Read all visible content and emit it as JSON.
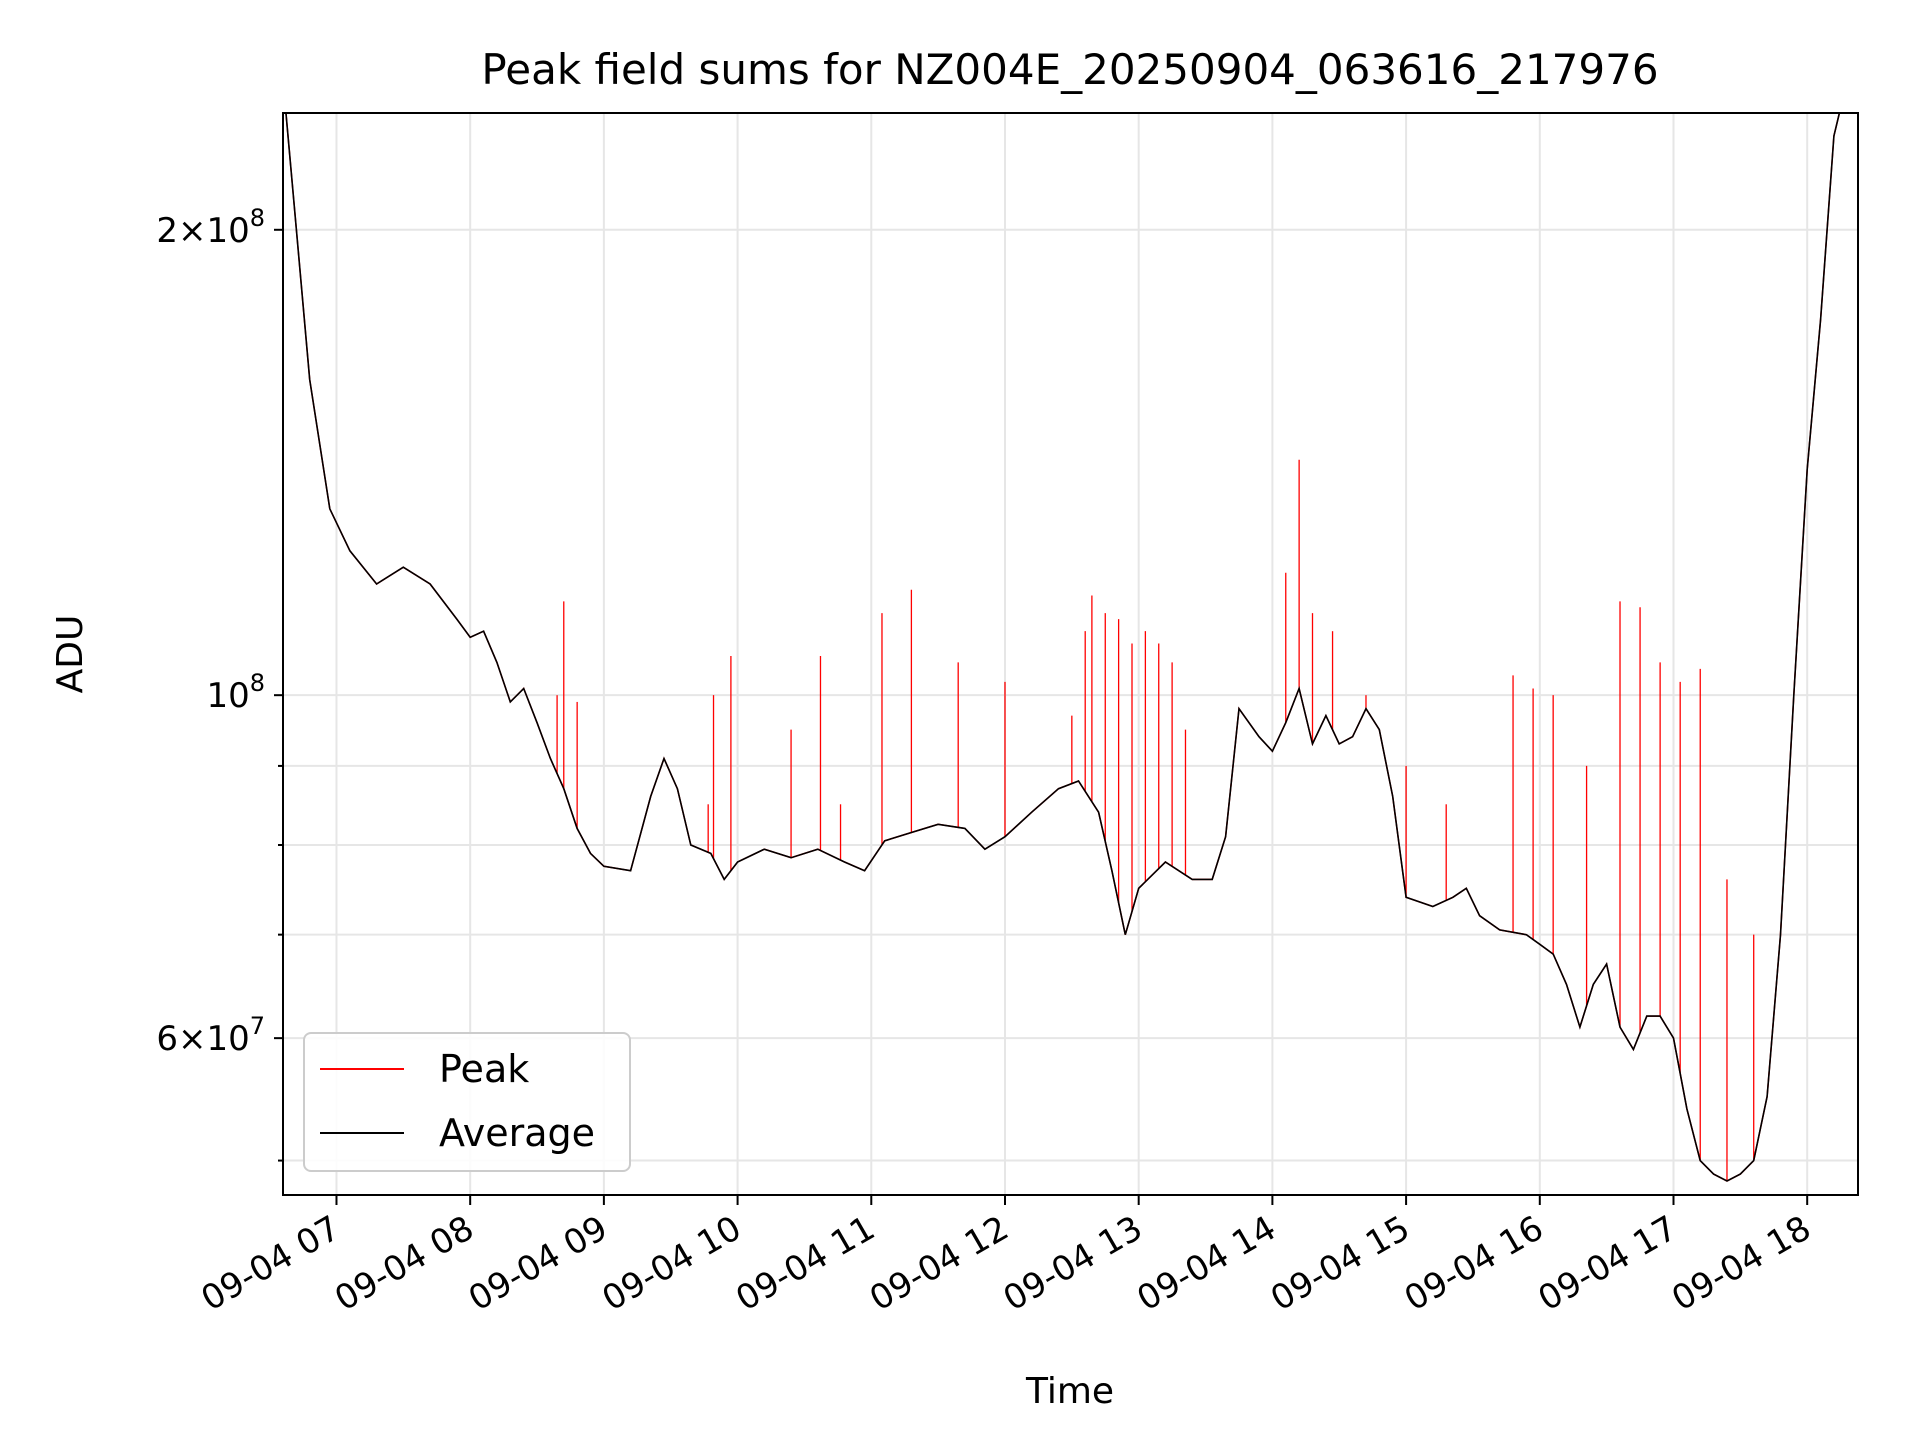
{
  "chart_data": {
    "type": "line",
    "title": "Peak field sums for NZ004E_20250904_063616_217976",
    "xlabel": "Time",
    "ylabel": "ADU",
    "yscale": "log",
    "grid": true,
    "legend_position": "lower-left",
    "x_ticks": [
      "09-04 07",
      "09-04 08",
      "09-04 09",
      "09-04 10",
      "09-04 11",
      "09-04 12",
      "09-04 13",
      "09-04 14",
      "09-04 15",
      "09-04 16",
      "09-04 17",
      "09-04 18"
    ],
    "y_ticks": [
      {
        "value": 60000000,
        "mant": "6",
        "exp": "7"
      },
      {
        "value": 100000000,
        "mant": "",
        "exp": "8"
      },
      {
        "value": 200000000,
        "mant": "2",
        "exp": "8"
      }
    ],
    "x_range_hours": [
      6.6,
      18.38
    ],
    "ylim": [
      47500000,
      238000000
    ],
    "series": [
      {
        "name": "Peak",
        "color": "#ff0000",
        "points": [
          [
            6.6,
            250000000
          ],
          [
            6.7,
            200000000
          ],
          [
            6.8,
            160000000
          ],
          [
            6.95,
            132000000
          ],
          [
            7.1,
            124000000
          ],
          [
            7.3,
            118000000
          ],
          [
            7.5,
            121000000
          ],
          [
            7.7,
            118000000
          ],
          [
            7.9,
            112000000
          ],
          [
            8.0,
            109000000
          ],
          [
            8.1,
            110000000
          ],
          [
            8.2,
            105000000
          ],
          [
            8.3,
            99000000
          ],
          [
            8.4,
            101000000
          ],
          [
            8.5,
            96000000
          ],
          [
            8.6,
            91000000
          ],
          [
            8.7,
            87000000
          ],
          [
            8.8,
            82000000
          ],
          [
            8.9,
            79000000
          ],
          [
            9.0,
            77500000
          ],
          [
            9.2,
            77000000
          ],
          [
            9.35,
            86000000
          ],
          [
            9.45,
            91000000
          ],
          [
            9.55,
            87000000
          ],
          [
            9.65,
            80000000
          ],
          [
            9.8,
            79000000
          ],
          [
            9.9,
            76000000
          ],
          [
            10.0,
            78000000
          ],
          [
            10.2,
            79500000
          ],
          [
            10.4,
            78500000
          ],
          [
            10.6,
            79500000
          ],
          [
            10.8,
            78000000
          ],
          [
            10.95,
            77000000
          ],
          [
            11.1,
            80500000
          ],
          [
            11.3,
            81500000
          ],
          [
            11.5,
            82500000
          ],
          [
            11.7,
            82000000
          ],
          [
            11.85,
            79500000
          ],
          [
            12.0,
            81000000
          ],
          [
            12.2,
            84000000
          ],
          [
            12.4,
            87000000
          ],
          [
            12.55,
            88000000
          ],
          [
            12.7,
            84000000
          ],
          [
            12.8,
            77000000
          ],
          [
            12.9,
            70000000
          ],
          [
            13.0,
            75000000
          ],
          [
            13.2,
            78000000
          ],
          [
            13.4,
            76000000
          ],
          [
            13.55,
            76000000
          ],
          [
            13.65,
            81000000
          ],
          [
            13.75,
            98000000
          ],
          [
            13.9,
            94000000
          ],
          [
            14.0,
            92000000
          ],
          [
            14.1,
            96000000
          ],
          [
            14.2,
            101000000
          ],
          [
            14.3,
            93000000
          ],
          [
            14.4,
            97000000
          ],
          [
            14.5,
            93000000
          ],
          [
            14.6,
            94000000
          ],
          [
            14.7,
            98000000
          ],
          [
            14.8,
            95000000
          ],
          [
            14.9,
            86000000
          ],
          [
            15.0,
            74000000
          ],
          [
            15.2,
            73000000
          ],
          [
            15.35,
            74000000
          ],
          [
            15.45,
            75000000
          ],
          [
            15.55,
            72000000
          ],
          [
            15.7,
            70500000
          ],
          [
            15.9,
            70000000
          ],
          [
            16.0,
            69000000
          ],
          [
            16.1,
            68000000
          ],
          [
            16.2,
            65000000
          ],
          [
            16.3,
            61000000
          ],
          [
            16.4,
            65000000
          ],
          [
            16.5,
            67000000
          ],
          [
            16.6,
            61000000
          ],
          [
            16.7,
            59000000
          ],
          [
            16.8,
            62000000
          ],
          [
            16.9,
            62000000
          ],
          [
            17.0,
            60000000
          ],
          [
            17.1,
            54000000
          ],
          [
            17.2,
            50000000
          ],
          [
            17.3,
            49000000
          ],
          [
            17.4,
            48500000
          ],
          [
            17.5,
            49000000
          ],
          [
            17.6,
            50000000
          ],
          [
            17.7,
            55000000
          ],
          [
            17.8,
            70000000
          ],
          [
            17.9,
            100000000
          ],
          [
            18.0,
            140000000
          ],
          [
            18.1,
            175000000
          ],
          [
            18.2,
            230000000
          ],
          [
            18.3,
            250000000
          ]
        ],
        "spikes": [
          [
            8.65,
            100000000
          ],
          [
            8.7,
            115000000
          ],
          [
            8.8,
            99000000
          ],
          [
            9.78,
            85000000
          ],
          [
            9.82,
            100000000
          ],
          [
            9.95,
            106000000
          ],
          [
            10.4,
            95000000
          ],
          [
            10.62,
            106000000
          ],
          [
            10.77,
            85000000
          ],
          [
            11.08,
            113000000
          ],
          [
            11.3,
            117000000
          ],
          [
            11.65,
            105000000
          ],
          [
            12.0,
            102000000
          ],
          [
            12.5,
            97000000
          ],
          [
            12.6,
            110000000
          ],
          [
            12.65,
            116000000
          ],
          [
            12.75,
            113000000
          ],
          [
            12.85,
            112000000
          ],
          [
            12.95,
            108000000
          ],
          [
            13.05,
            110000000
          ],
          [
            13.15,
            108000000
          ],
          [
            13.25,
            105000000
          ],
          [
            13.35,
            95000000
          ],
          [
            14.1,
            120000000
          ],
          [
            14.2,
            142000000
          ],
          [
            14.3,
            113000000
          ],
          [
            14.45,
            110000000
          ],
          [
            14.7,
            100000000
          ],
          [
            15.0,
            90000000
          ],
          [
            15.3,
            85000000
          ],
          [
            15.8,
            103000000
          ],
          [
            15.95,
            101000000
          ],
          [
            16.1,
            100000000
          ],
          [
            16.35,
            90000000
          ],
          [
            16.6,
            115000000
          ],
          [
            16.75,
            114000000
          ],
          [
            16.9,
            105000000
          ],
          [
            17.05,
            102000000
          ],
          [
            17.2,
            104000000
          ],
          [
            17.4,
            76000000
          ],
          [
            17.6,
            70000000
          ]
        ]
      },
      {
        "name": "Average",
        "color": "#000000",
        "points": [
          [
            6.6,
            250000000
          ],
          [
            6.7,
            200000000
          ],
          [
            6.8,
            160000000
          ],
          [
            6.95,
            132000000
          ],
          [
            7.1,
            124000000
          ],
          [
            7.3,
            118000000
          ],
          [
            7.5,
            121000000
          ],
          [
            7.7,
            118000000
          ],
          [
            7.9,
            112000000
          ],
          [
            8.0,
            109000000
          ],
          [
            8.1,
            110000000
          ],
          [
            8.2,
            105000000
          ],
          [
            8.3,
            99000000
          ],
          [
            8.4,
            101000000
          ],
          [
            8.5,
            96000000
          ],
          [
            8.6,
            91000000
          ],
          [
            8.7,
            87000000
          ],
          [
            8.8,
            82000000
          ],
          [
            8.9,
            79000000
          ],
          [
            9.0,
            77500000
          ],
          [
            9.2,
            77000000
          ],
          [
            9.35,
            86000000
          ],
          [
            9.45,
            91000000
          ],
          [
            9.55,
            87000000
          ],
          [
            9.65,
            80000000
          ],
          [
            9.8,
            79000000
          ],
          [
            9.9,
            76000000
          ],
          [
            10.0,
            78000000
          ],
          [
            10.2,
            79500000
          ],
          [
            10.4,
            78500000
          ],
          [
            10.6,
            79500000
          ],
          [
            10.8,
            78000000
          ],
          [
            10.95,
            77000000
          ],
          [
            11.1,
            80500000
          ],
          [
            11.3,
            81500000
          ],
          [
            11.5,
            82500000
          ],
          [
            11.7,
            82000000
          ],
          [
            11.85,
            79500000
          ],
          [
            12.0,
            81000000
          ],
          [
            12.2,
            84000000
          ],
          [
            12.4,
            87000000
          ],
          [
            12.55,
            88000000
          ],
          [
            12.7,
            84000000
          ],
          [
            12.8,
            77000000
          ],
          [
            12.9,
            70000000
          ],
          [
            13.0,
            75000000
          ],
          [
            13.2,
            78000000
          ],
          [
            13.4,
            76000000
          ],
          [
            13.55,
            76000000
          ],
          [
            13.65,
            81000000
          ],
          [
            13.75,
            98000000
          ],
          [
            13.9,
            94000000
          ],
          [
            14.0,
            92000000
          ],
          [
            14.1,
            96000000
          ],
          [
            14.2,
            101000000
          ],
          [
            14.3,
            93000000
          ],
          [
            14.4,
            97000000
          ],
          [
            14.5,
            93000000
          ],
          [
            14.6,
            94000000
          ],
          [
            14.7,
            98000000
          ],
          [
            14.8,
            95000000
          ],
          [
            14.9,
            86000000
          ],
          [
            15.0,
            74000000
          ],
          [
            15.2,
            73000000
          ],
          [
            15.35,
            74000000
          ],
          [
            15.45,
            75000000
          ],
          [
            15.55,
            72000000
          ],
          [
            15.7,
            70500000
          ],
          [
            15.9,
            70000000
          ],
          [
            16.0,
            69000000
          ],
          [
            16.1,
            68000000
          ],
          [
            16.2,
            65000000
          ],
          [
            16.3,
            61000000
          ],
          [
            16.4,
            65000000
          ],
          [
            16.5,
            67000000
          ],
          [
            16.6,
            61000000
          ],
          [
            16.7,
            59000000
          ],
          [
            16.8,
            62000000
          ],
          [
            16.9,
            62000000
          ],
          [
            17.0,
            60000000
          ],
          [
            17.1,
            54000000
          ],
          [
            17.2,
            50000000
          ],
          [
            17.3,
            49000000
          ],
          [
            17.4,
            48500000
          ],
          [
            17.5,
            49000000
          ],
          [
            17.6,
            50000000
          ],
          [
            17.7,
            55000000
          ],
          [
            17.8,
            70000000
          ],
          [
            17.9,
            100000000
          ],
          [
            18.0,
            140000000
          ],
          [
            18.1,
            175000000
          ],
          [
            18.2,
            230000000
          ],
          [
            18.3,
            250000000
          ]
        ]
      }
    ]
  }
}
